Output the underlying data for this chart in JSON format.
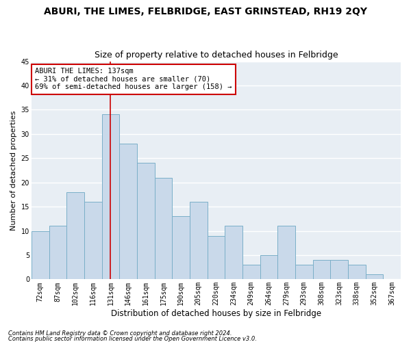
{
  "title": "ABURI, THE LIMES, FELBRIDGE, EAST GRINSTEAD, RH19 2QY",
  "subtitle": "Size of property relative to detached houses in Felbridge",
  "xlabel": "Distribution of detached houses by size in Felbridge",
  "ylabel": "Number of detached properties",
  "footnote1": "Contains HM Land Registry data © Crown copyright and database right 2024.",
  "footnote2": "Contains public sector information licensed under the Open Government Licence v3.0.",
  "categories": [
    "72sqm",
    "87sqm",
    "102sqm",
    "116sqm",
    "131sqm",
    "146sqm",
    "161sqm",
    "175sqm",
    "190sqm",
    "205sqm",
    "220sqm",
    "234sqm",
    "249sqm",
    "264sqm",
    "279sqm",
    "293sqm",
    "308sqm",
    "323sqm",
    "338sqm",
    "352sqm",
    "367sqm"
  ],
  "values": [
    10,
    11,
    18,
    16,
    34,
    28,
    24,
    21,
    13,
    16,
    9,
    11,
    3,
    5,
    11,
    3,
    4,
    4,
    3,
    1,
    0
  ],
  "bar_color": "#c9d9ea",
  "bar_edge_color": "#7aafc8",
  "bg_color": "#e8eef4",
  "grid_color": "#ffffff",
  "annotation_line1": "ABURI THE LIMES: 137sqm",
  "annotation_line2": "← 31% of detached houses are smaller (70)",
  "annotation_line3": "69% of semi-detached houses are larger (158) →",
  "annotation_box_color": "#ffffff",
  "annotation_box_edge": "#cc0000",
  "vline_color": "#cc0000",
  "vline_x_index": 4,
  "ylim": [
    0,
    45
  ],
  "yticks": [
    0,
    5,
    10,
    15,
    20,
    25,
    30,
    35,
    40,
    45
  ],
  "title_fontsize": 10,
  "subtitle_fontsize": 9,
  "xlabel_fontsize": 8.5,
  "ylabel_fontsize": 8,
  "tick_fontsize": 7,
  "annotation_fontsize": 7.5,
  "footnote_fontsize": 6
}
